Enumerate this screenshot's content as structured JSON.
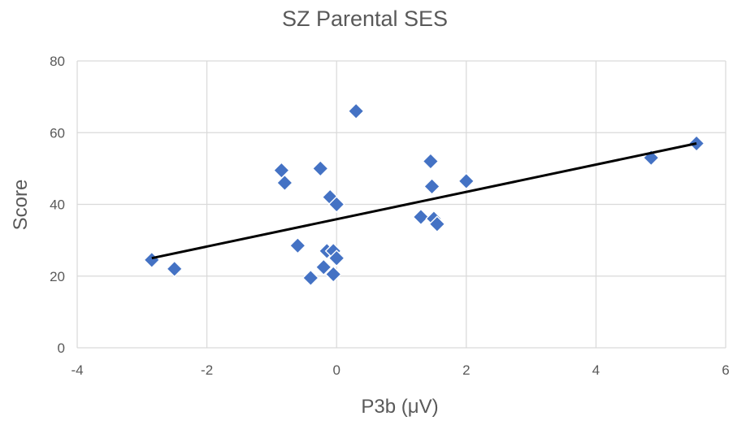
{
  "chart_data": {
    "type": "scatter",
    "title": "SZ Parental SES",
    "xlabel": "P3b (μV)",
    "ylabel": "Score",
    "xlim": [
      -4,
      6
    ],
    "ylim": [
      0,
      80
    ],
    "xticks": [
      -4,
      -2,
      0,
      2,
      4,
      6
    ],
    "yticks": [
      0,
      20,
      40,
      60,
      80
    ],
    "grid": true,
    "legend": "none",
    "marker_color": "#4472c4",
    "series": [
      {
        "points": [
          {
            "x": -2.85,
            "y": 24.5
          },
          {
            "x": -2.5,
            "y": 22
          },
          {
            "x": -0.85,
            "y": 49.5
          },
          {
            "x": -0.8,
            "y": 46
          },
          {
            "x": -0.6,
            "y": 28.5
          },
          {
            "x": -0.4,
            "y": 19.5
          },
          {
            "x": -0.25,
            "y": 50
          },
          {
            "x": -0.2,
            "y": 22.5
          },
          {
            "x": -0.15,
            "y": 27
          },
          {
            "x": -0.1,
            "y": 42
          },
          {
            "x": -0.05,
            "y": 20.5
          },
          {
            "x": -0.05,
            "y": 27
          },
          {
            "x": 0.0,
            "y": 25
          },
          {
            "x": 0.0,
            "y": 40
          },
          {
            "x": 0.3,
            "y": 66
          },
          {
            "x": 1.3,
            "y": 36.5
          },
          {
            "x": 1.45,
            "y": 52
          },
          {
            "x": 1.47,
            "y": 45
          },
          {
            "x": 1.5,
            "y": 36
          },
          {
            "x": 1.55,
            "y": 34.5
          },
          {
            "x": 2.0,
            "y": 46.5
          },
          {
            "x": 4.85,
            "y": 53
          },
          {
            "x": 5.55,
            "y": 57
          }
        ]
      }
    ],
    "trendline": {
      "x": [
        -2.85,
        5.55
      ],
      "y": [
        25,
        57
      ]
    }
  }
}
